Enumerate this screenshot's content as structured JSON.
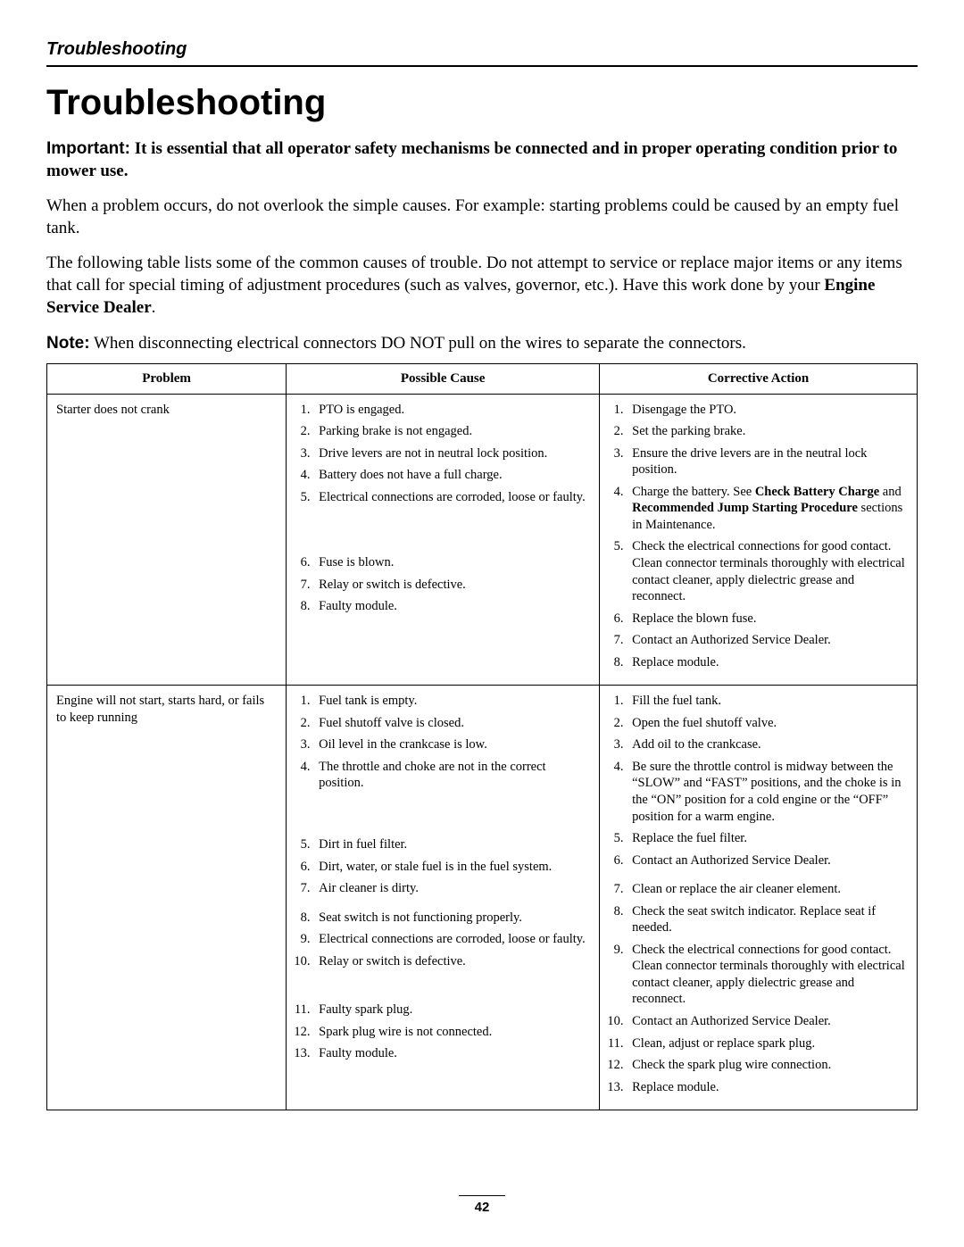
{
  "runningHead": "Troubleshooting",
  "title": "Troubleshooting",
  "important": {
    "label": "Important:",
    "text": "It is essential that all operator safety mechanisms be connected and in proper operating condition prior to mower use."
  },
  "para1": "When a problem occurs, do not overlook the simple causes. For example: starting problems could be caused by an empty fuel tank.",
  "para2_pre": "The following table lists some of the common causes of trouble. Do not attempt to service or replace major items or any items that call for special timing of adjustment procedures (such as valves, governor, etc.). Have this work done by your ",
  "para2_bold": "Engine Service Dealer",
  "para2_post": ".",
  "note": {
    "label": "Note:",
    "text": "When disconnecting electrical connectors DO NOT pull on the wires to separate the connectors."
  },
  "table": {
    "headers": [
      "Problem",
      "Possible Cause",
      "Corrective Action"
    ],
    "rows": [
      {
        "problem": "Starter does not crank",
        "causes": [
          "PTO is engaged.",
          "Parking brake is not engaged.",
          "Drive levers are not in neutral lock position.",
          "Battery does not have a full charge.",
          "Electrical connections are corroded, loose or faulty.",
          "Fuse is blown.",
          "Relay or switch is defective.",
          "Faulty module."
        ],
        "actions": [
          {
            "text": "Disengage the PTO."
          },
          {
            "text": "Set the parking brake."
          },
          {
            "text": "Ensure the drive levers are in the neutral lock position."
          },
          {
            "pre": "Charge the battery. See ",
            "bold": "Check Battery Charge",
            "mid": " and ",
            "bold2": "Recommended Jump Starting Procedure",
            "post": " sections in Maintenance."
          },
          {
            "text": "Check the electrical connections for good contact. Clean connector terminals thoroughly with electrical contact cleaner, apply dielectric grease and reconnect."
          },
          {
            "text": "Replace the blown fuse."
          },
          {
            "text": "Contact an Authorized Service Dealer."
          },
          {
            "text": "Replace module."
          }
        ],
        "causeSpacing": [
          0,
          0,
          0,
          0,
          55,
          0,
          0,
          0
        ],
        "actionSpacing": [
          0,
          0,
          0,
          0,
          0,
          0,
          0,
          0
        ]
      },
      {
        "problem": "Engine will not start, starts hard, or fails to keep running",
        "causes": [
          "Fuel tank is empty.",
          "Fuel shutoff valve is closed.",
          "Oil level in the crankcase is low.",
          "The throttle and choke are not in the correct position.",
          "Dirt in fuel filter.",
          "Dirt, water, or stale fuel is in the fuel system.",
          "Air cleaner is dirty.",
          "Seat switch is not functioning properly.",
          "Electrical connections are corroded, loose or faulty.",
          "Relay or switch is defective.",
          "Faulty spark plug.",
          "Spark plug wire is not connected.",
          "Faulty module."
        ],
        "actions": [
          {
            "text": "Fill the fuel tank."
          },
          {
            "text": "Open the fuel shutoff valve."
          },
          {
            "text": "Add oil to the crankcase."
          },
          {
            "text": "Be sure the throttle control is midway between the “SLOW” and “FAST” positions, and the choke is in the “ON” position for a cold engine or the “OFF” position for a warm engine."
          },
          {
            "text": "Replace the fuel filter."
          },
          {
            "text": "Contact an Authorized Service Dealer."
          },
          {
            "text": "Clean or replace the air cleaner element."
          },
          {
            "text": "Check the seat switch indicator. Replace seat if needed."
          },
          {
            "text": "Check the electrical connections for good contact. Clean connector terminals thoroughly with electrical contact cleaner, apply dielectric grease and reconnect."
          },
          {
            "text": "Contact an Authorized Service Dealer."
          },
          {
            "text": "Clean, adjust or replace spark plug."
          },
          {
            "text": "Check the spark plug wire connection."
          },
          {
            "text": "Replace module."
          }
        ],
        "causeSpacing": [
          0,
          0,
          0,
          50,
          0,
          0,
          14,
          0,
          0,
          36,
          0,
          0,
          0
        ],
        "actionSpacing": [
          0,
          0,
          0,
          0,
          0,
          14,
          0,
          0,
          0,
          0,
          0,
          0,
          0
        ]
      }
    ]
  },
  "pageNumber": "42"
}
